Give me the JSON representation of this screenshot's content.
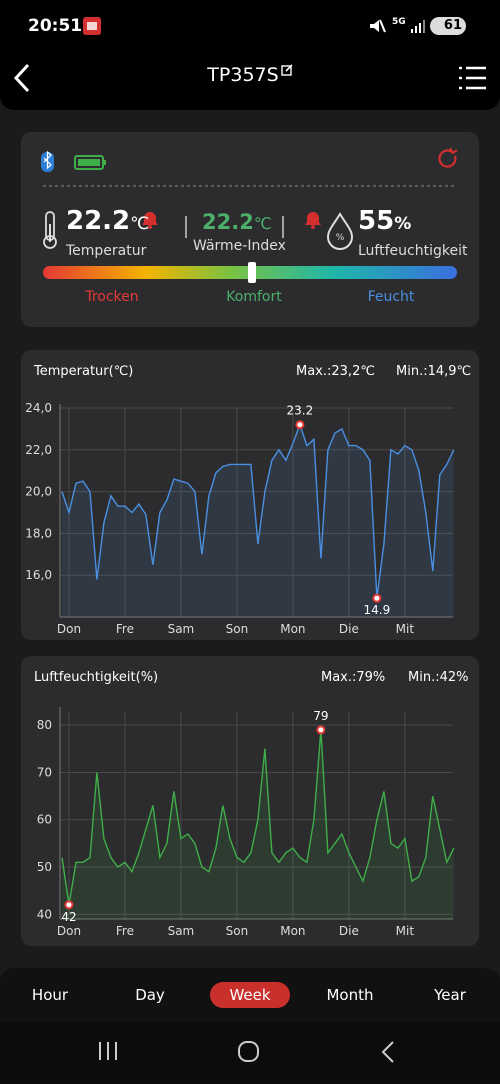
{
  "status_bar": {
    "time": "20:51",
    "network": "5G",
    "battery": "61"
  },
  "header": {
    "title": "TP357S"
  },
  "summary": {
    "temperature": {
      "value": "22.2",
      "unit": "℃",
      "label": "Temperatur"
    },
    "heat_index": {
      "value": "22.2",
      "unit": "℃",
      "label": "Wärme-Index"
    },
    "humidity": {
      "value": "55",
      "unit": "%",
      "label": "Luftfeuchtigkeit"
    },
    "scale_labels": [
      "Trocken",
      "Komfort",
      "Feucht"
    ]
  },
  "chart_data": [
    {
      "type": "line",
      "title": "Temperatur(℃)",
      "max_label": "Max.:23,2℃",
      "min_label": "Min.:14,9℃",
      "x": [
        -0.125,
        0,
        0.125,
        0.25,
        0.375,
        0.5,
        0.625,
        0.75,
        0.875,
        1,
        1.125,
        1.25,
        1.375,
        1.5,
        1.625,
        1.75,
        1.875,
        2,
        2.125,
        2.25,
        2.375,
        2.5,
        2.625,
        2.75,
        2.875,
        3,
        3.125,
        3.25,
        3.375,
        3.5,
        3.625,
        3.75,
        3.875,
        4,
        4.125,
        4.25,
        4.375,
        4.5,
        4.625,
        4.75,
        4.875,
        5,
        5.125,
        5.25,
        5.375,
        5.5,
        5.625,
        5.75,
        5.875,
        6,
        6.125,
        6.25,
        6.375,
        6.5,
        6.625,
        6.75,
        6.875
      ],
      "series": [
        {
          "color": "#4a90e2",
          "values": [
            20.0,
            19.0,
            20.4,
            20.5,
            20.0,
            15.8,
            18.5,
            19.8,
            19.3,
            19.3,
            19.0,
            19.4,
            18.9,
            16.5,
            19.0,
            19.6,
            20.6,
            20.5,
            20.4,
            20.0,
            17.0,
            19.8,
            20.9,
            21.2,
            21.3,
            21.3,
            21.3,
            21.3,
            17.5,
            20.0,
            21.5,
            22.0,
            21.5,
            22.3,
            23.2,
            22.2,
            22.5,
            16.8,
            22.0,
            22.8,
            23.0,
            22.2,
            22.2,
            22.0,
            21.5,
            14.9,
            17.5,
            22.0,
            21.8,
            22.2,
            22.0,
            21.0,
            19.0,
            16.2,
            20.8,
            21.3,
            22.0
          ]
        }
      ],
      "xlim": [
        -0.16,
        6.86
      ],
      "xticks": [
        {
          "value": 0,
          "label": "Don"
        },
        {
          "value": 1,
          "label": "Fre"
        },
        {
          "value": 2,
          "label": "Sam"
        },
        {
          "value": 3,
          "label": "Son"
        },
        {
          "value": 4,
          "label": "Mon"
        },
        {
          "value": 5,
          "label": "Die"
        },
        {
          "value": 6,
          "label": "Mit"
        }
      ],
      "ylim": [
        14,
        24
      ],
      "yticks": [
        {
          "value": 16,
          "label": "16,0"
        },
        {
          "value": 18,
          "label": "18,0"
        },
        {
          "value": 20,
          "label": "20,0"
        },
        {
          "value": 22,
          "label": "22,0"
        },
        {
          "value": 24,
          "label": "24,0"
        }
      ],
      "grid": true
    },
    {
      "type": "line",
      "title": "Luftfeuchtigkeit(%)",
      "max_label": "Max.:79%",
      "min_label": "Min.:42%",
      "x": [
        -0.125,
        0,
        0.125,
        0.25,
        0.375,
        0.5,
        0.625,
        0.75,
        0.875,
        1,
        1.125,
        1.25,
        1.375,
        1.5,
        1.625,
        1.75,
        1.875,
        2,
        2.125,
        2.25,
        2.375,
        2.5,
        2.625,
        2.75,
        2.875,
        3,
        3.125,
        3.25,
        3.375,
        3.5,
        3.625,
        3.75,
        3.875,
        4,
        4.125,
        4.25,
        4.375,
        4.5,
        4.625,
        4.75,
        4.875,
        5,
        5.125,
        5.25,
        5.375,
        5.5,
        5.625,
        5.75,
        5.875,
        6,
        6.125,
        6.25,
        6.375,
        6.5,
        6.625,
        6.75,
        6.875
      ],
      "series": [
        {
          "color": "#3fae49",
          "values": [
            52,
            42,
            51,
            51,
            52,
            70,
            56,
            52,
            50,
            51,
            49,
            53,
            58,
            63,
            52,
            55,
            66,
            56,
            57,
            55,
            50,
            49,
            54,
            63,
            56,
            52,
            51,
            53,
            60,
            75,
            53,
            51,
            53,
            54,
            52,
            51,
            60,
            79,
            53,
            55,
            57,
            53,
            50,
            47,
            52,
            60,
            66,
            55,
            54,
            56,
            47,
            48,
            52,
            65,
            58,
            51,
            54
          ]
        }
      ],
      "xlim": [
        -0.16,
        6.86
      ],
      "xticks": [
        {
          "value": 0,
          "label": "Don"
        },
        {
          "value": 1,
          "label": "Fre"
        },
        {
          "value": 2,
          "label": "Sam"
        },
        {
          "value": 3,
          "label": "Son"
        },
        {
          "value": 4,
          "label": "Mon"
        },
        {
          "value": 5,
          "label": "Die"
        },
        {
          "value": 6,
          "label": "Mit"
        }
      ],
      "ylim": [
        39,
        83
      ],
      "yticks": [
        40,
        50,
        60,
        70,
        80
      ],
      "grid": true
    }
  ],
  "tabs": {
    "items": [
      "Hour",
      "Day",
      "Week",
      "Month",
      "Year"
    ],
    "selected": "Week"
  }
}
